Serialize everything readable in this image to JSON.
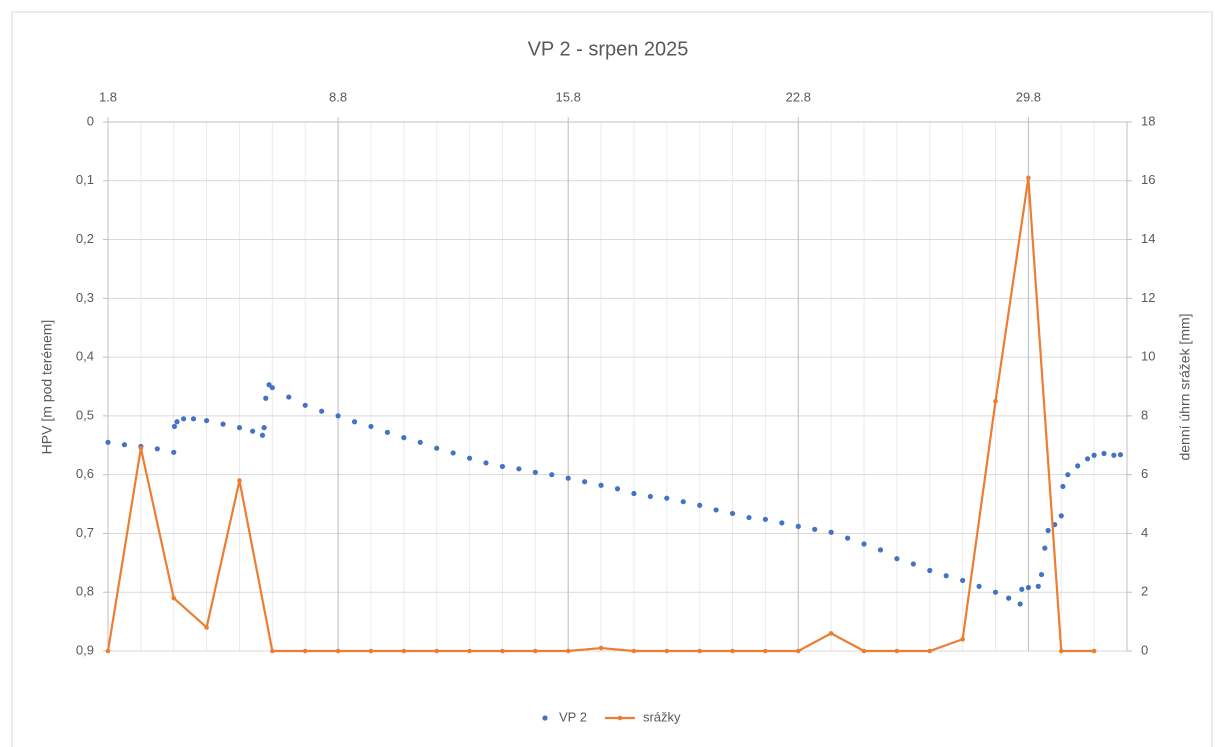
{
  "chart_data": {
    "type": "scatter",
    "title": "VP 2 - srpen 2025",
    "y_label": "HPV [m pod terénem]",
    "y2_label": "denní úhrn srážek [mm]",
    "xlim": [
      1,
      32
    ],
    "xticks": [
      {
        "value": 1,
        "label": "1.8"
      },
      {
        "value": 8,
        "label": "8.8"
      },
      {
        "value": 15,
        "label": "15.8"
      },
      {
        "value": 22,
        "label": "22.8"
      },
      {
        "value": 29,
        "label": "29.8"
      }
    ],
    "ylim": [
      0,
      0.9
    ],
    "yticks": [
      {
        "value": 0,
        "label": "0"
      },
      {
        "value": 0.1,
        "label": "0,1"
      },
      {
        "value": 0.2,
        "label": "0,2"
      },
      {
        "value": 0.3,
        "label": "0,3"
      },
      {
        "value": 0.4,
        "label": "0,4"
      },
      {
        "value": 0.5,
        "label": "0,5"
      },
      {
        "value": 0.6,
        "label": "0,6"
      },
      {
        "value": 0.7,
        "label": "0,7"
      },
      {
        "value": 0.8,
        "label": "0,8"
      },
      {
        "value": 0.9,
        "label": "0,9"
      }
    ],
    "y_inverted": true,
    "y2lim": [
      0,
      18
    ],
    "y2ticks": [
      0,
      2,
      4,
      6,
      8,
      10,
      12,
      14,
      16,
      18
    ],
    "grid": true,
    "minor_grid": true,
    "legend": "bottom",
    "series": [
      {
        "name": "VP 2",
        "type": "scatter",
        "color": "#4472c4",
        "x": [
          1.0,
          1.5,
          2.0,
          2.5,
          3.0,
          3.02,
          3.1,
          3.3,
          3.6,
          4.0,
          4.5,
          5.0,
          5.4,
          5.7,
          5.75,
          5.8,
          5.9,
          6.0,
          6.5,
          7.0,
          7.5,
          8.0,
          8.5,
          9.0,
          9.5,
          10.0,
          10.5,
          11.0,
          11.5,
          12.0,
          12.5,
          13.0,
          13.5,
          14.0,
          14.5,
          15.0,
          15.5,
          16.0,
          16.5,
          17.0,
          17.5,
          18.0,
          18.5,
          19.0,
          19.5,
          20.0,
          20.5,
          21.0,
          21.5,
          22.0,
          22.5,
          23.0,
          23.5,
          24.0,
          24.5,
          25.0,
          25.5,
          26.0,
          26.5,
          27.0,
          27.5,
          28.0,
          28.4,
          28.75,
          28.8,
          29.0,
          29.3,
          29.4,
          29.5,
          29.6,
          29.8,
          30.0,
          30.05,
          30.2,
          30.5,
          30.8,
          31.0,
          31.3,
          31.6,
          31.8
        ],
        "values": [
          0.545,
          0.549,
          0.552,
          0.556,
          0.562,
          0.518,
          0.51,
          0.505,
          0.505,
          0.508,
          0.514,
          0.52,
          0.526,
          0.533,
          0.52,
          0.47,
          0.447,
          0.452,
          0.468,
          0.482,
          0.492,
          0.5,
          0.51,
          0.518,
          0.528,
          0.537,
          0.545,
          0.555,
          0.563,
          0.572,
          0.58,
          0.586,
          0.59,
          0.596,
          0.6,
          0.606,
          0.612,
          0.618,
          0.624,
          0.632,
          0.637,
          0.64,
          0.646,
          0.652,
          0.66,
          0.666,
          0.673,
          0.676,
          0.682,
          0.688,
          0.693,
          0.698,
          0.708,
          0.718,
          0.728,
          0.743,
          0.752,
          0.763,
          0.772,
          0.78,
          0.79,
          0.8,
          0.81,
          0.82,
          0.795,
          0.792,
          0.79,
          0.77,
          0.725,
          0.695,
          0.685,
          0.67,
          0.62,
          0.6,
          0.585,
          0.573,
          0.567,
          0.564,
          0.567,
          0.566
        ]
      },
      {
        "name": "srážky",
        "type": "line",
        "color": "#ed7d31",
        "axis": "y2",
        "x": [
          1,
          2,
          3,
          4,
          5,
          6,
          7,
          8,
          9,
          10,
          11,
          12,
          13,
          14,
          15,
          16,
          17,
          18,
          19,
          20,
          21,
          22,
          23,
          24,
          25,
          26,
          27,
          28,
          29,
          30,
          31
        ],
        "values": [
          0,
          6.9,
          1.8,
          0.8,
          5.8,
          0,
          0,
          0,
          0,
          0,
          0,
          0,
          0,
          0,
          0,
          0.1,
          0,
          0,
          0,
          0,
          0,
          0,
          0.6,
          0,
          0,
          0,
          0.4,
          8.5,
          16.1,
          0,
          0
        ]
      }
    ]
  }
}
